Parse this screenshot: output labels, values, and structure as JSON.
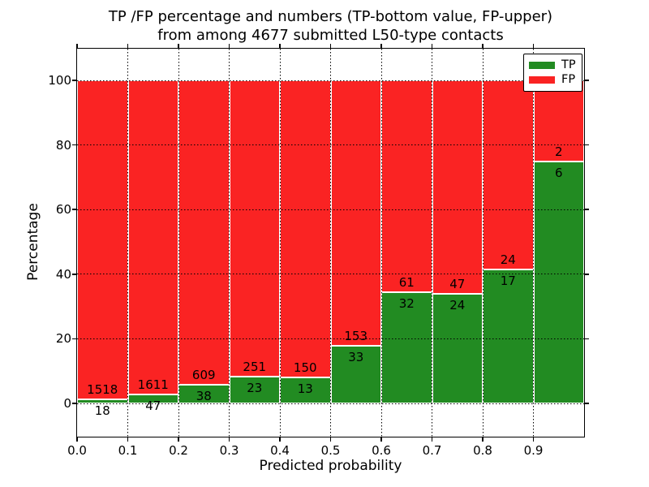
{
  "titles": {
    "line1": "TP /FP percentage and numbers (TP-bottom value, FP-upper)",
    "line2": "from among 4677 submitted L50-type contacts"
  },
  "legend": {
    "entries": [
      {
        "label": "TP",
        "color": "#228B22"
      },
      {
        "label": "FP",
        "color": "#FA2323"
      }
    ]
  },
  "chart_data": {
    "type": "bar",
    "subtype": "stacked-percentage",
    "title": "TP /FP percentage and numbers (TP-bottom value, FP-upper)\nfrom among 4677 submitted L50-type contacts",
    "xlabel": "Predicted probability",
    "ylabel": "Percentage",
    "total_submitted": 4677,
    "grid": true,
    "legend_position": "upper right",
    "xlim": [
      0.0,
      1.0
    ],
    "ylim": [
      -10.3,
      109.8
    ],
    "series": [
      {
        "name": "TP",
        "color": "#228B22",
        "position": "bottom"
      },
      {
        "name": "FP",
        "color": "#FA2323",
        "position": "top"
      }
    ],
    "bins": [
      {
        "x_start": 0.0,
        "x_end": 0.1,
        "tp": 18,
        "fp": 1518,
        "tp_pct": 1.17
      },
      {
        "x_start": 0.1,
        "x_end": 0.2,
        "tp": 47,
        "fp": 1611,
        "tp_pct": 2.83
      },
      {
        "x_start": 0.2,
        "x_end": 0.3,
        "tp": 38,
        "fp": 609,
        "tp_pct": 5.87
      },
      {
        "x_start": 0.3,
        "x_end": 0.4,
        "tp": 23,
        "fp": 251,
        "tp_pct": 8.39
      },
      {
        "x_start": 0.4,
        "x_end": 0.5,
        "tp": 13,
        "fp": 150,
        "tp_pct": 7.98
      },
      {
        "x_start": 0.5,
        "x_end": 0.6,
        "tp": 33,
        "fp": 153,
        "tp_pct": 17.74
      },
      {
        "x_start": 0.6,
        "x_end": 0.7,
        "tp": 32,
        "fp": 61,
        "tp_pct": 34.41
      },
      {
        "x_start": 0.7,
        "x_end": 0.8,
        "tp": 24,
        "fp": 47,
        "tp_pct": 33.8
      },
      {
        "x_start": 0.8,
        "x_end": 0.9,
        "tp": 17,
        "fp": 24,
        "tp_pct": 41.46
      },
      {
        "x_start": 0.9,
        "x_end": 1.0,
        "tp": 6,
        "fp": 2,
        "tp_pct": 75.0
      }
    ],
    "xticks": [
      {
        "v": 0.0,
        "label": "0.0"
      },
      {
        "v": 0.1,
        "label": "0.1"
      },
      {
        "v": 0.2,
        "label": "0.2"
      },
      {
        "v": 0.3,
        "label": "0.3"
      },
      {
        "v": 0.4,
        "label": "0.4"
      },
      {
        "v": 0.5,
        "label": "0.5"
      },
      {
        "v": 0.6,
        "label": "0.6"
      },
      {
        "v": 0.7,
        "label": "0.7"
      },
      {
        "v": 0.8,
        "label": "0.8"
      },
      {
        "v": 0.9,
        "label": "0.9"
      }
    ],
    "yticks": [
      {
        "v": 0,
        "label": "0"
      },
      {
        "v": 20,
        "label": "20"
      },
      {
        "v": 40,
        "label": "40"
      },
      {
        "v": 60,
        "label": "60"
      },
      {
        "v": 80,
        "label": "80"
      },
      {
        "v": 100,
        "label": "100"
      }
    ]
  }
}
